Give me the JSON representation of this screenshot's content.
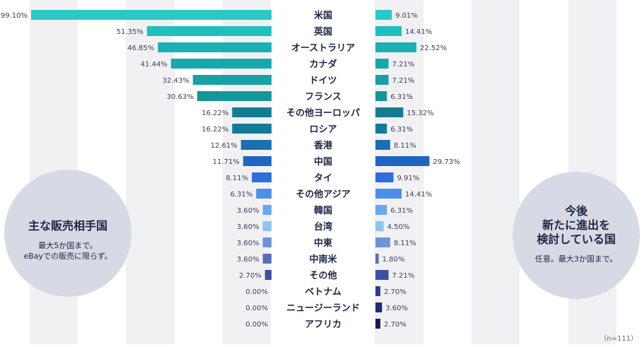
{
  "chart_data": {
    "type": "bar",
    "categories": [
      "米国",
      "英国",
      "オーストラリア",
      "カナダ",
      "ドイツ",
      "フランス",
      "その他ヨーロッパ",
      "ロシア",
      "香港",
      "中国",
      "タイ",
      "その他アジア",
      "韓国",
      "台湾",
      "中東",
      "中南米",
      "その他",
      "ベトナム",
      "ニュージーランド",
      "アフリカ"
    ],
    "series": [
      {
        "values": [
          99.1,
          51.35,
          46.85,
          41.44,
          32.43,
          30.63,
          16.22,
          16.22,
          12.61,
          11.71,
          8.11,
          6.31,
          3.6,
          3.6,
          3.6,
          3.6,
          2.7,
          0.0,
          0.0,
          0.0
        ],
        "labels": [
          "99.10%",
          "51.35%",
          "46.85%",
          "41.44%",
          "32.43%",
          "30.63%",
          "16.22%",
          "16.22%",
          "12.61%",
          "11.71%",
          "8.11%",
          "6.31%",
          "3.60%",
          "3.60%",
          "3.60%",
          "3.60%",
          "2.70%",
          "0.00%",
          "0.00%",
          "0.00%"
        ]
      },
      {
        "values": [
          9.01,
          14.41,
          22.52,
          7.21,
          7.21,
          6.31,
          15.32,
          6.31,
          8.11,
          29.73,
          9.91,
          14.41,
          6.31,
          4.5,
          8.11,
          1.8,
          7.21,
          2.7,
          3.6,
          2.7
        ],
        "labels": [
          "9.01%",
          "14.41%",
          "22.52%",
          "7.21%",
          "7.21%",
          "6.31%",
          "15.32%",
          "6.31%",
          "8.11%",
          "29.73%",
          "9.91%",
          "14.41%",
          "6.31%",
          "4.50%",
          "8.11%",
          "1.80%",
          "7.21%",
          "2.70%",
          "3.60%",
          "2.70%"
        ]
      }
    ],
    "colors": [
      "#2bc8c5",
      "#20bfbf",
      "#1ab0b4",
      "#17a8ab",
      "#17a1a4",
      "#15979a",
      "#127d90",
      "#137a98",
      "#1a6fb0",
      "#1f66c2",
      "#2e6fe0",
      "#4a90e8",
      "#6aa8ee",
      "#8fc2f2",
      "#6f93d8",
      "#5b6fb8",
      "#3f4fa0",
      "#2f3a8c",
      "#22296f",
      "#151b55"
    ],
    "grid": "alternating vertical stripes"
  },
  "left_circle": {
    "title": "主な販売相手国",
    "note": "最大5か国まで。\neBayでの販売に限らず。"
  },
  "right_circle": {
    "title": "今後\n新たに進出を\n検討している国",
    "note": "任意。最大3か国まで。"
  },
  "sample_size": "（n=111）"
}
